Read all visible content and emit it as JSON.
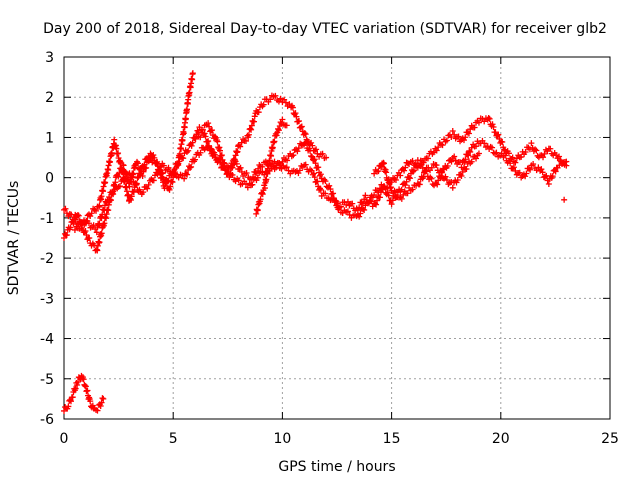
{
  "chart_data": {
    "type": "scatter",
    "title": "Day 200 of 2018, Sidereal Day-to-day VTEC variation (SDTVAR) for receiver glb2",
    "xlabel": "GPS time / hours",
    "ylabel": "SDTVAR / TECUs",
    "xlim": [
      0,
      25
    ],
    "ylim": [
      -6,
      3
    ],
    "xticks": [
      "0",
      "5",
      "10",
      "15",
      "20",
      "25"
    ],
    "yticks": [
      "-6",
      "-5",
      "-4",
      "-3",
      "-2",
      "-1",
      "0",
      "1",
      "2",
      "3"
    ],
    "grid": true,
    "marker": "+",
    "color": "#ff0000",
    "series": [
      {
        "name": "SDTVAR",
        "tracks": [
          [
            [
              0,
              -1.5
            ],
            [
              0.3,
              -1.2
            ],
            [
              0.6,
              -0.9
            ],
            [
              0.9,
              -1.3
            ],
            [
              1.2,
              -1.6
            ],
            [
              1.5,
              -1.8
            ],
            [
              1.8,
              -1.2
            ],
            [
              2.1,
              -0.6
            ],
            [
              2.4,
              0.0
            ],
            [
              2.7,
              0.3
            ],
            [
              3.0,
              -0.2
            ],
            [
              3.3,
              0.4
            ],
            [
              3.6,
              0.1
            ],
            [
              4.0,
              0.6
            ],
            [
              4.4,
              0.2
            ],
            [
              4.8,
              -0.3
            ],
            [
              5.2,
              0.3
            ],
            [
              5.5,
              1.2
            ],
            [
              5.7,
              2.0
            ],
            [
              5.9,
              2.6
            ]
          ],
          [
            [
              0,
              -0.8
            ],
            [
              0.4,
              -1.0
            ],
            [
              0.8,
              -1.2
            ],
            [
              1.2,
              -0.9
            ],
            [
              1.6,
              -0.7
            ],
            [
              2.0,
              0.2
            ],
            [
              2.3,
              0.9
            ],
            [
              2.6,
              0.3
            ],
            [
              3.0,
              -0.6
            ],
            [
              3.4,
              0.0
            ],
            [
              3.8,
              0.5
            ],
            [
              4.2,
              0.4
            ],
            [
              4.6,
              -0.2
            ],
            [
              5.0,
              0.2
            ],
            [
              5.4,
              0.5
            ],
            [
              5.8,
              0.8
            ],
            [
              6.2,
              1.2
            ],
            [
              6.6,
              1.3
            ],
            [
              7.0,
              0.9
            ],
            [
              7.4,
              0.2
            ],
            [
              7.8,
              0.4
            ],
            [
              8.2,
              0.1
            ],
            [
              8.6,
              0.0
            ],
            [
              9.0,
              0.3
            ],
            [
              9.4,
              0.4
            ],
            [
              9.8,
              0.3
            ],
            [
              10.2,
              0.2
            ],
            [
              10.6,
              0.1
            ],
            [
              11.0,
              0.3
            ],
            [
              11.4,
              0.1
            ],
            [
              11.8,
              -0.4
            ],
            [
              12.2,
              -0.5
            ],
            [
              12.6,
              -0.7
            ],
            [
              13.0,
              -0.6
            ],
            [
              13.4,
              -0.8
            ],
            [
              13.8,
              -0.5
            ],
            [
              14.2,
              -0.7
            ],
            [
              14.6,
              -0.3
            ],
            [
              15.0,
              -0.1
            ],
            [
              15.4,
              0.1
            ],
            [
              15.8,
              0.4
            ],
            [
              16.2,
              0.3
            ],
            [
              16.6,
              0.5
            ],
            [
              17.0,
              0.7
            ],
            [
              17.4,
              0.9
            ],
            [
              17.8,
              1.1
            ],
            [
              18.2,
              0.9
            ],
            [
              18.6,
              1.2
            ],
            [
              19.0,
              1.4
            ],
            [
              19.4,
              1.5
            ],
            [
              19.8,
              1.1
            ],
            [
              20.2,
              0.7
            ],
            [
              20.6,
              0.4
            ],
            [
              21.0,
              0.6
            ],
            [
              21.4,
              0.8
            ],
            [
              21.8,
              0.5
            ],
            [
              22.2,
              0.7
            ],
            [
              22.6,
              0.5
            ],
            [
              23.0,
              0.3
            ]
          ],
          [
            [
              0.5,
              -1.3
            ],
            [
              1.0,
              -1.1
            ],
            [
              1.5,
              -1.3
            ],
            [
              2.0,
              -0.5
            ],
            [
              2.5,
              -0.2
            ],
            [
              3.0,
              0.1
            ],
            [
              3.5,
              -0.4
            ],
            [
              4.0,
              -0.1
            ],
            [
              4.5,
              0.3
            ],
            [
              5.0,
              0.1
            ],
            [
              5.5,
              0.0
            ],
            [
              6.0,
              0.5
            ],
            [
              6.5,
              0.8
            ],
            [
              7.0,
              0.5
            ],
            [
              7.5,
              0.1
            ],
            [
              8.0,
              -0.1
            ],
            [
              8.5,
              -0.2
            ],
            [
              9.0,
              0.1
            ],
            [
              9.5,
              0.2
            ],
            [
              10.0,
              0.4
            ],
            [
              10.5,
              0.6
            ],
            [
              11.0,
              0.9
            ],
            [
              11.4,
              0.5
            ],
            [
              11.8,
              0.0
            ],
            [
              12.2,
              -0.3
            ],
            [
              12.6,
              -0.8
            ],
            [
              13.0,
              -0.9
            ],
            [
              13.4,
              -1.0
            ],
            [
              13.8,
              -0.7
            ],
            [
              14.2,
              -0.4
            ],
            [
              14.6,
              -0.2
            ],
            [
              15.0,
              -0.6
            ],
            [
              15.4,
              -0.3
            ],
            [
              15.8,
              0.0
            ],
            [
              16.2,
              0.4
            ],
            [
              16.6,
              0.1
            ],
            [
              17.0,
              -0.2
            ],
            [
              17.4,
              0.2
            ],
            [
              17.8,
              0.5
            ],
            [
              18.2,
              0.3
            ],
            [
              18.6,
              0.7
            ],
            [
              19.0,
              0.9
            ],
            [
              19.4,
              0.8
            ],
            [
              19.8,
              0.6
            ],
            [
              20.2,
              0.5
            ],
            [
              20.6,
              0.2
            ],
            [
              21.0,
              0.0
            ],
            [
              21.4,
              0.3
            ],
            [
              21.8,
              0.2
            ],
            [
              22.2,
              -0.1
            ],
            [
              22.6,
              0.3
            ],
            [
              23.0,
              0.4
            ]
          ],
          [
            [
              6.0,
              1.0
            ],
            [
              6.4,
              1.1
            ],
            [
              6.8,
              0.6
            ],
            [
              7.2,
              0.3
            ],
            [
              7.6,
              0.1
            ],
            [
              8.0,
              0.8
            ],
            [
              8.4,
              1.0
            ],
            [
              8.8,
              1.6
            ],
            [
              9.2,
              1.9
            ],
            [
              9.6,
              2.0
            ],
            [
              10.0,
              1.9
            ],
            [
              10.4,
              1.8
            ],
            [
              10.8,
              1.3
            ],
            [
              11.2,
              0.9
            ],
            [
              11.6,
              0.6
            ],
            [
              12.0,
              0.5
            ]
          ],
          [
            [
              8.8,
              -0.9
            ],
            [
              9.0,
              -0.5
            ],
            [
              9.2,
              -0.2
            ],
            [
              9.4,
              0.4
            ],
            [
              9.6,
              0.9
            ],
            [
              9.8,
              1.2
            ],
            [
              10.0,
              1.4
            ],
            [
              10.2,
              1.3
            ]
          ],
          [
            [
              14.2,
              0.1
            ],
            [
              14.4,
              0.2
            ],
            [
              14.6,
              0.4
            ],
            [
              14.8,
              0.0
            ],
            [
              15.0,
              -0.3
            ],
            [
              15.4,
              -0.5
            ],
            [
              15.8,
              -0.3
            ],
            [
              16.2,
              -0.2
            ],
            [
              16.6,
              0.2
            ],
            [
              17.0,
              0.3
            ],
            [
              17.4,
              0.0
            ],
            [
              17.8,
              -0.2
            ],
            [
              18.2,
              0.1
            ],
            [
              18.6,
              0.4
            ],
            [
              19.0,
              0.6
            ]
          ],
          [
            [
              0.0,
              -5.8
            ],
            [
              0.2,
              -5.65
            ],
            [
              0.4,
              -5.4
            ],
            [
              0.6,
              -5.1
            ],
            [
              0.8,
              -4.9
            ],
            [
              1.0,
              -5.2
            ],
            [
              1.2,
              -5.6
            ],
            [
              1.4,
              -5.8
            ],
            [
              1.6,
              -5.7
            ],
            [
              1.8,
              -5.5
            ]
          ]
        ],
        "points": [
          [
            22.9,
            -0.55
          ]
        ]
      }
    ]
  }
}
